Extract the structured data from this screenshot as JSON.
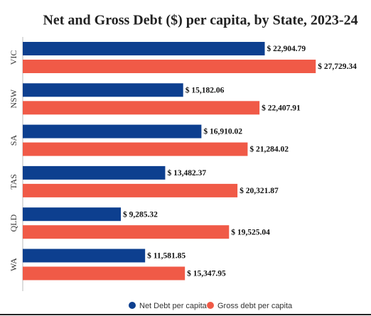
{
  "chart_data": {
    "type": "hbar",
    "title": "Net and Gross Debt ($) per capita, by State, 2023-24",
    "categories": [
      "VIC",
      "NSW",
      "SA",
      "TAS",
      "QLD",
      "WA"
    ],
    "series": [
      {
        "name": "Net Debt per capita",
        "color": "#0d3f8f",
        "values": [
          22904.79,
          15182.06,
          16910.02,
          13482.37,
          9285.32,
          11581.85
        ],
        "value_labels": [
          "$ 22,904.79",
          "$ 15,182.06",
          "$ 16,910.02",
          "$ 13,482.37",
          "$ 9,285.32",
          "$ 11,581.85"
        ]
      },
      {
        "name": "Gross debt per capita",
        "color": "#f05a47",
        "values": [
          27729.34,
          22407.91,
          21284.02,
          20321.87,
          19525.04,
          15347.95
        ],
        "value_labels": [
          "$ 27,729.34",
          "$ 22,407.91",
          "$ 21,284.02",
          "$ 20,321.87",
          "$ 19,525.04",
          "$ 15,347.95"
        ]
      }
    ],
    "xlim": [
      0,
      30000
    ],
    "legend": "bottom"
  }
}
